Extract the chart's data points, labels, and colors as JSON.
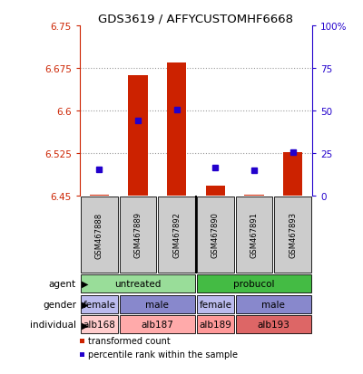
{
  "title": "GDS3619 / AFFYCUSTOMHF6668",
  "samples": [
    "GSM467888",
    "GSM467889",
    "GSM467892",
    "GSM467890",
    "GSM467891",
    "GSM467893"
  ],
  "red_values": [
    6.452,
    6.662,
    6.685,
    6.468,
    6.451,
    6.527
  ],
  "blue_values": [
    6.497,
    6.583,
    6.601,
    6.5,
    6.494,
    6.527
  ],
  "ylim": [
    6.45,
    6.75
  ],
  "yticks": [
    6.45,
    6.525,
    6.6,
    6.675,
    6.75
  ],
  "ytick_labels": [
    "6.45",
    "6.525",
    "6.6",
    "6.675",
    "6.75"
  ],
  "right_yticks": [
    0,
    25,
    50,
    75,
    100
  ],
  "right_ytick_labels": [
    "0",
    "25",
    "50",
    "75",
    "100%"
  ],
  "agent_labels": [
    {
      "label": "untreated",
      "start": 0,
      "end": 3,
      "color": "#99dd99"
    },
    {
      "label": "probucol",
      "start": 3,
      "end": 6,
      "color": "#44bb44"
    }
  ],
  "gender_labels": [
    {
      "label": "female",
      "start": 0,
      "end": 1,
      "color": "#bbbbee"
    },
    {
      "label": "male",
      "start": 1,
      "end": 3,
      "color": "#8888cc"
    },
    {
      "label": "female",
      "start": 3,
      "end": 4,
      "color": "#bbbbee"
    },
    {
      "label": "male",
      "start": 4,
      "end": 6,
      "color": "#8888cc"
    }
  ],
  "individual_labels": [
    {
      "label": "alb168",
      "start": 0,
      "end": 1,
      "color": "#ffcccc"
    },
    {
      "label": "alb187",
      "start": 1,
      "end": 3,
      "color": "#ffaaaa"
    },
    {
      "label": "alb189",
      "start": 3,
      "end": 4,
      "color": "#ff9999"
    },
    {
      "label": "alb193",
      "start": 4,
      "end": 6,
      "color": "#dd6666"
    }
  ],
  "bar_color": "#cc2200",
  "dot_color": "#2200cc",
  "grid_color": "#999999",
  "left_axis_color": "#cc2200",
  "right_axis_color": "#2200cc",
  "sample_box_color": "#cccccc",
  "legend_red": "transformed count",
  "legend_blue": "percentile rank within the sample",
  "row_labels": [
    "agent",
    "gender",
    "individual"
  ]
}
